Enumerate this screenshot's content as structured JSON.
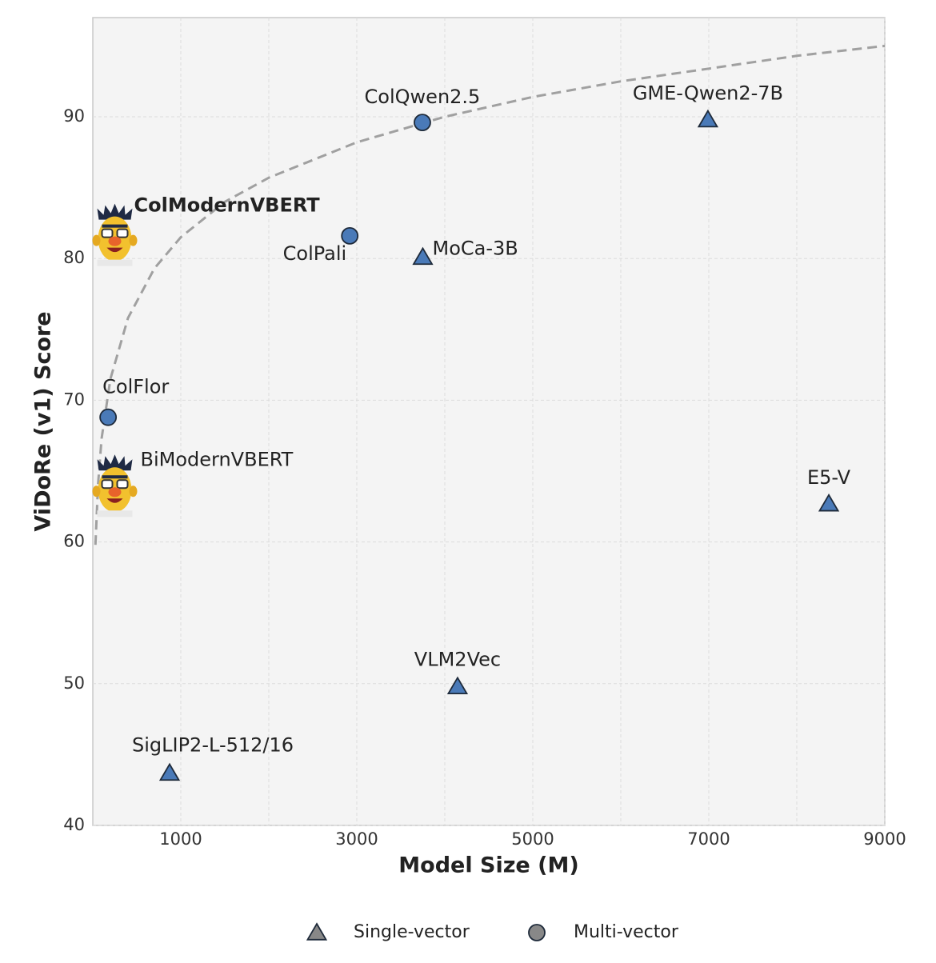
{
  "chart_data": {
    "type": "scatter",
    "xlabel": "Model Size (M)",
    "ylabel": "ViDoRe (v1) Score",
    "xlim": [
      0,
      9000
    ],
    "ylim": [
      40,
      97
    ],
    "xticks": [
      1000,
      3000,
      5000,
      7000,
      9000
    ],
    "xminor": [
      2000,
      4000,
      6000,
      8000
    ],
    "yticks": [
      40,
      50,
      60,
      70,
      80,
      90
    ],
    "grid": true,
    "color": "#4a7ab8",
    "points": [
      {
        "label": "ColQwen2.5",
        "x": 3745,
        "y": 89.6,
        "marker": "circle"
      },
      {
        "label": "GME-Qwen2-7B",
        "x": 6990,
        "y": 89.8,
        "marker": "triangle"
      },
      {
        "label": "ColModernVBERT",
        "x": 250,
        "y": 81.5,
        "marker": "bert",
        "bold": true
      },
      {
        "label": "ColPali",
        "x": 2920,
        "y": 81.6,
        "marker": "circle"
      },
      {
        "label": "MoCa-3B",
        "x": 3750,
        "y": 80.1,
        "marker": "triangle"
      },
      {
        "label": "ColFlor",
        "x": 174,
        "y": 68.8,
        "marker": "circle"
      },
      {
        "label": "BiModernVBERT",
        "x": 250,
        "y": 63.8,
        "marker": "bert"
      },
      {
        "label": "E5-V",
        "x": 8364,
        "y": 62.7,
        "marker": "triangle"
      },
      {
        "label": "VLM2Vec",
        "x": 4145,
        "y": 49.8,
        "marker": "triangle"
      },
      {
        "label": "SigLIP2-L-512/16",
        "x": 873,
        "y": 43.7,
        "marker": "triangle"
      }
    ],
    "frontier": {
      "x": [
        30,
        60,
        100,
        200,
        400,
        700,
        1000,
        1500,
        2000,
        3000,
        4000,
        5000,
        6000,
        7000,
        8000,
        9000
      ],
      "values": [
        59.8,
        64.1,
        67.3,
        71.5,
        75.8,
        79.3,
        81.5,
        84.0,
        85.7,
        88.2,
        90.0,
        91.4,
        92.5,
        93.4,
        94.3,
        95.0
      ],
      "color": "#a0a0a0",
      "dashed": true
    },
    "legend": [
      {
        "label": "Single-vector",
        "marker": "triangle",
        "color": "#888888"
      },
      {
        "label": "Multi-vector",
        "marker": "circle",
        "color": "#888888"
      }
    ]
  }
}
